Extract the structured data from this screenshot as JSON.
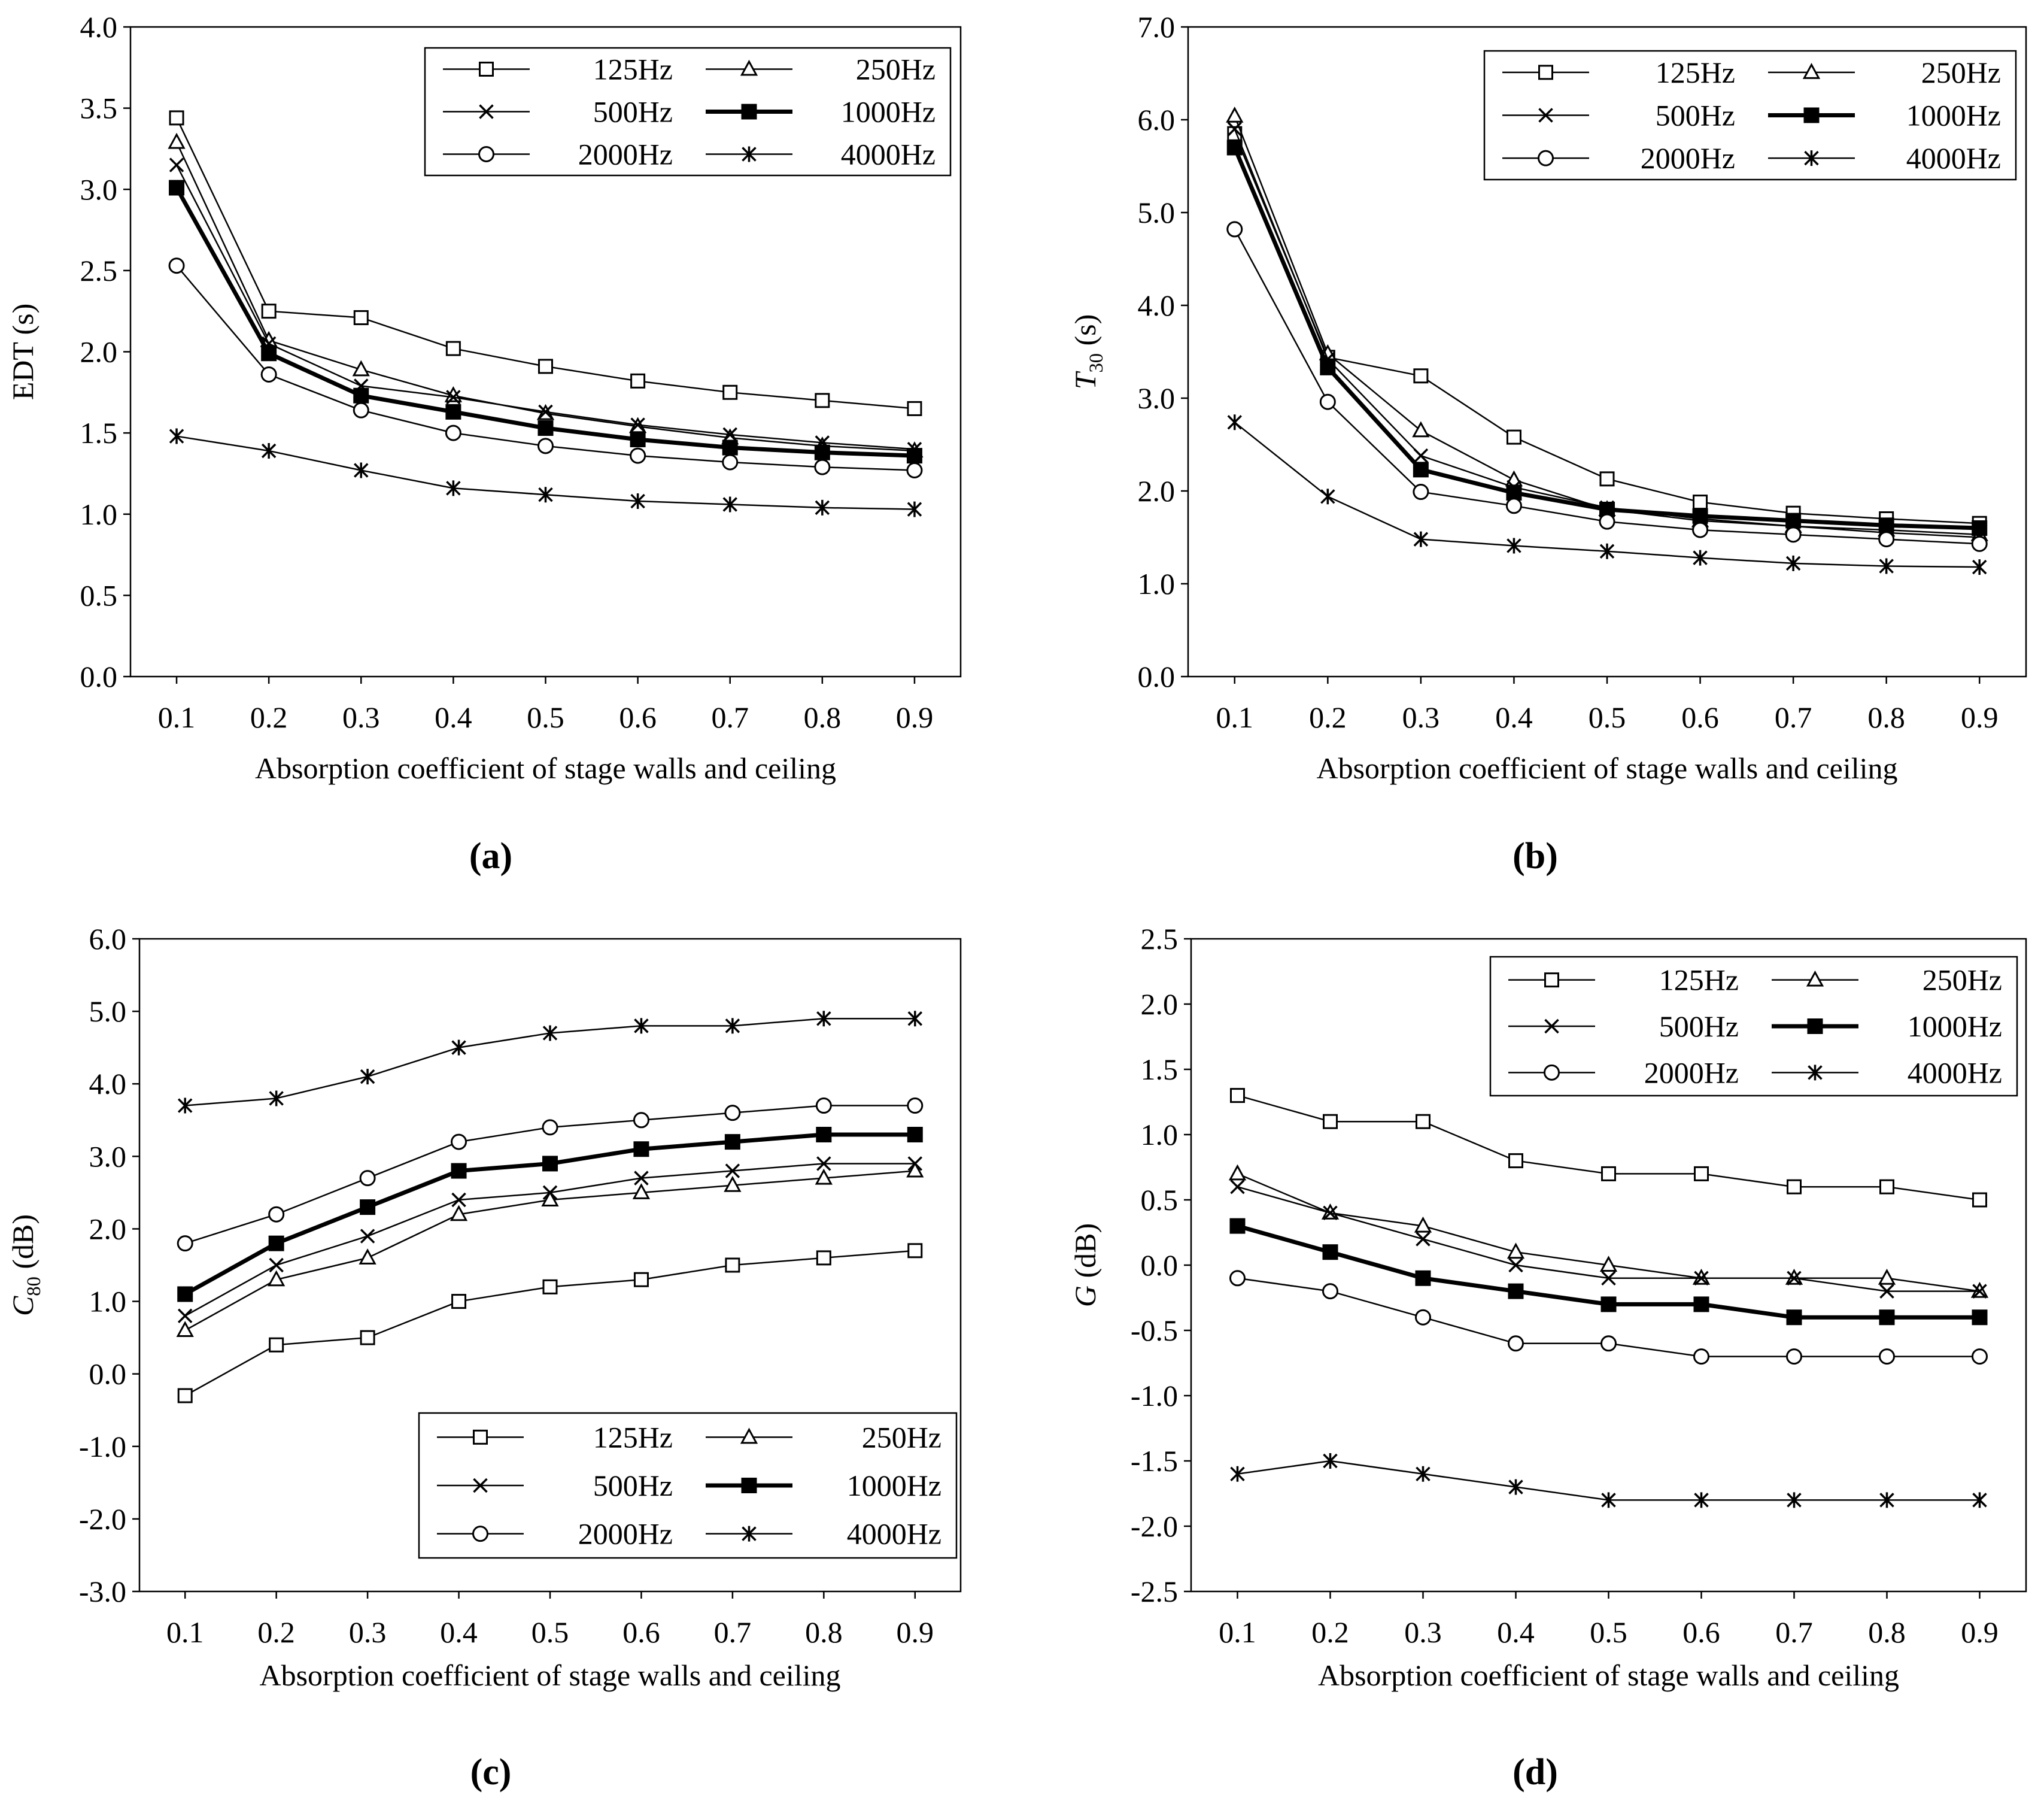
{
  "figure": {
    "series_names": [
      "125Hz",
      "250Hz",
      "500Hz",
      "1000Hz",
      "2000Hz",
      "4000Hz"
    ],
    "series_markers": [
      "square-icon",
      "triangle-icon",
      "x-cross-icon",
      "filled-square-icon",
      "circle-icon",
      "asterisk-icon"
    ],
    "colors": {
      "line": "#000000",
      "background": "#ffffff"
    }
  },
  "chart_data": [
    {
      "panel": "(a)",
      "type": "line",
      "title": "",
      "xlabel": "Absorption coefficient of stage walls and ceiling",
      "ylabel": "EDT (s)",
      "ylabel_parts": [
        "EDT (s)"
      ],
      "x": [
        0.1,
        0.2,
        0.3,
        0.4,
        0.5,
        0.6,
        0.7,
        0.8,
        0.9
      ],
      "x_tick_labels": [
        "0.1",
        "0.2",
        "0.3",
        "0.4",
        "0.5",
        "0.6",
        "0.7",
        "0.8",
        "0.9"
      ],
      "ylim": [
        0,
        4
      ],
      "y_ticks": [
        0,
        0.5,
        1,
        1.5,
        2,
        2.5,
        3,
        3.5,
        4
      ],
      "y_tick_labels": [
        "0.0",
        "0.5",
        "1.0",
        "1.5",
        "2.0",
        "2.5",
        "3.0",
        "3.5",
        "4.0"
      ],
      "grid": false,
      "legend": "top-right",
      "series": [
        {
          "name": "125Hz",
          "values": [
            3.44,
            2.25,
            2.21,
            2.02,
            1.91,
            1.82,
            1.75,
            1.7,
            1.65
          ]
        },
        {
          "name": "250Hz",
          "values": [
            3.29,
            2.07,
            1.89,
            1.73,
            1.62,
            1.54,
            1.47,
            1.42,
            1.39
          ]
        },
        {
          "name": "500Hz",
          "values": [
            3.15,
            2.05,
            1.79,
            1.72,
            1.63,
            1.55,
            1.49,
            1.44,
            1.4
          ]
        },
        {
          "name": "1000Hz",
          "values": [
            3.01,
            1.99,
            1.73,
            1.63,
            1.53,
            1.46,
            1.41,
            1.38,
            1.36
          ]
        },
        {
          "name": "2000Hz",
          "values": [
            2.53,
            1.86,
            1.64,
            1.5,
            1.42,
            1.36,
            1.32,
            1.29,
            1.27
          ]
        },
        {
          "name": "4000Hz",
          "values": [
            1.48,
            1.39,
            1.27,
            1.16,
            1.12,
            1.08,
            1.06,
            1.04,
            1.03
          ]
        }
      ]
    },
    {
      "panel": "(b)",
      "type": "line",
      "title": "",
      "xlabel": "Absorption coefficient of stage walls and ceiling",
      "ylabel": "T30 (s)",
      "ylabel_parts": [
        "T",
        "30",
        " (s)"
      ],
      "x": [
        0.1,
        0.2,
        0.3,
        0.4,
        0.5,
        0.6,
        0.7,
        0.8,
        0.9
      ],
      "x_tick_labels": [
        "0.1",
        "0.2",
        "0.3",
        "0.4",
        "0.5",
        "0.6",
        "0.7",
        "0.8",
        "0.9"
      ],
      "ylim": [
        0,
        7
      ],
      "y_ticks": [
        0,
        1,
        2,
        3,
        4,
        5,
        6,
        7
      ],
      "y_tick_labels": [
        "0.0",
        "1.0",
        "2.0",
        "3.0",
        "4.0",
        "5.0",
        "6.0",
        "7.0"
      ],
      "grid": false,
      "legend": "top-right",
      "series": [
        {
          "name": "125Hz",
          "values": [
            5.85,
            3.44,
            3.24,
            2.58,
            2.13,
            1.88,
            1.76,
            1.7,
            1.65
          ]
        },
        {
          "name": "250Hz",
          "values": [
            6.04,
            3.48,
            2.65,
            2.12,
            1.8,
            1.68,
            1.62,
            1.58,
            1.53
          ]
        },
        {
          "name": "500Hz",
          "values": [
            5.9,
            3.42,
            2.38,
            2.04,
            1.82,
            1.7,
            1.62,
            1.55,
            1.5
          ]
        },
        {
          "name": "1000Hz",
          "values": [
            5.7,
            3.33,
            2.23,
            1.98,
            1.8,
            1.73,
            1.68,
            1.63,
            1.6
          ]
        },
        {
          "name": "2000Hz",
          "values": [
            4.82,
            2.96,
            1.99,
            1.84,
            1.67,
            1.58,
            1.53,
            1.48,
            1.43
          ]
        },
        {
          "name": "4000Hz",
          "values": [
            2.74,
            1.94,
            1.48,
            1.41,
            1.35,
            1.28,
            1.22,
            1.19,
            1.18
          ]
        }
      ]
    },
    {
      "panel": "(c)",
      "type": "line",
      "title": "",
      "xlabel": "Absorption coefficient of stage walls and ceiling",
      "ylabel": "C80 (dB)",
      "ylabel_parts": [
        "C",
        "80",
        " (dB)"
      ],
      "x": [
        0.1,
        0.2,
        0.3,
        0.4,
        0.5,
        0.6,
        0.7,
        0.8,
        0.9
      ],
      "x_tick_labels": [
        "0.1",
        "0.2",
        "0.3",
        "0.4",
        "0.5",
        "0.6",
        "0.7",
        "0.8",
        "0.9"
      ],
      "ylim": [
        -3,
        6
      ],
      "y_ticks": [
        -3,
        -2,
        -1,
        0,
        1,
        2,
        3,
        4,
        5,
        6
      ],
      "y_tick_labels": [
        "-3.0",
        "-2.0",
        "-1.0",
        "0.0",
        "1.0",
        "2.0",
        "3.0",
        "4.0",
        "5.0",
        "6.0"
      ],
      "grid": false,
      "legend": "bottom-right",
      "series": [
        {
          "name": "125Hz",
          "values": [
            -0.3,
            0.4,
            0.5,
            1.0,
            1.2,
            1.3,
            1.5,
            1.6,
            1.7
          ]
        },
        {
          "name": "250Hz",
          "values": [
            0.6,
            1.3,
            1.6,
            2.2,
            2.4,
            2.5,
            2.6,
            2.7,
            2.8
          ]
        },
        {
          "name": "500Hz",
          "values": [
            0.8,
            1.5,
            1.9,
            2.4,
            2.5,
            2.7,
            2.8,
            2.9,
            2.9
          ]
        },
        {
          "name": "1000Hz",
          "values": [
            1.1,
            1.8,
            2.3,
            2.8,
            2.9,
            3.1,
            3.2,
            3.3,
            3.3
          ]
        },
        {
          "name": "2000Hz",
          "values": [
            1.8,
            2.2,
            2.7,
            3.2,
            3.4,
            3.5,
            3.6,
            3.7,
            3.7
          ]
        },
        {
          "name": "4000Hz",
          "values": [
            3.7,
            3.8,
            4.1,
            4.5,
            4.7,
            4.8,
            4.8,
            4.9,
            4.9
          ]
        }
      ]
    },
    {
      "panel": "(d)",
      "type": "line",
      "title": "",
      "xlabel": "Absorption coefficient of stage walls and ceiling",
      "ylabel": "G (dB)",
      "ylabel_parts": [
        "G",
        "",
        " (dB)"
      ],
      "x": [
        0.1,
        0.2,
        0.3,
        0.4,
        0.5,
        0.6,
        0.7,
        0.8,
        0.9
      ],
      "x_tick_labels": [
        "0.1",
        "0.2",
        "0.3",
        "0.4",
        "0.5",
        "0.6",
        "0.7",
        "0.8",
        "0.9"
      ],
      "ylim": [
        -2.5,
        2.5
      ],
      "y_ticks": [
        -2.5,
        -2,
        -1.5,
        -1,
        -0.5,
        0,
        0.5,
        1,
        1.5,
        2,
        2.5
      ],
      "y_tick_labels": [
        "-2.5",
        "-2.0",
        "-1.5",
        "-1.0",
        "-0.5",
        "0.0",
        "0.5",
        "1.0",
        "1.5",
        "2.0",
        "2.5"
      ],
      "grid": false,
      "legend": "top-right",
      "series": [
        {
          "name": "125Hz",
          "values": [
            1.3,
            1.1,
            1.1,
            0.8,
            0.7,
            0.7,
            0.6,
            0.6,
            0.5
          ]
        },
        {
          "name": "250Hz",
          "values": [
            0.7,
            0.4,
            0.3,
            0.1,
            0.0,
            -0.1,
            -0.1,
            -0.1,
            -0.2
          ]
        },
        {
          "name": "500Hz",
          "values": [
            0.6,
            0.4,
            0.2,
            0.0,
            -0.1,
            -0.1,
            -0.1,
            -0.2,
            -0.2
          ]
        },
        {
          "name": "1000Hz",
          "values": [
            0.3,
            0.1,
            -0.1,
            -0.2,
            -0.3,
            -0.3,
            -0.4,
            -0.4,
            -0.4
          ]
        },
        {
          "name": "2000Hz",
          "values": [
            -0.1,
            -0.2,
            -0.4,
            -0.6,
            -0.6,
            -0.7,
            -0.7,
            -0.7,
            -0.7
          ]
        },
        {
          "name": "4000Hz",
          "values": [
            -1.6,
            -1.5,
            -1.6,
            -1.7,
            -1.8,
            -1.8,
            -1.8,
            -1.8,
            -1.8
          ]
        }
      ]
    }
  ]
}
